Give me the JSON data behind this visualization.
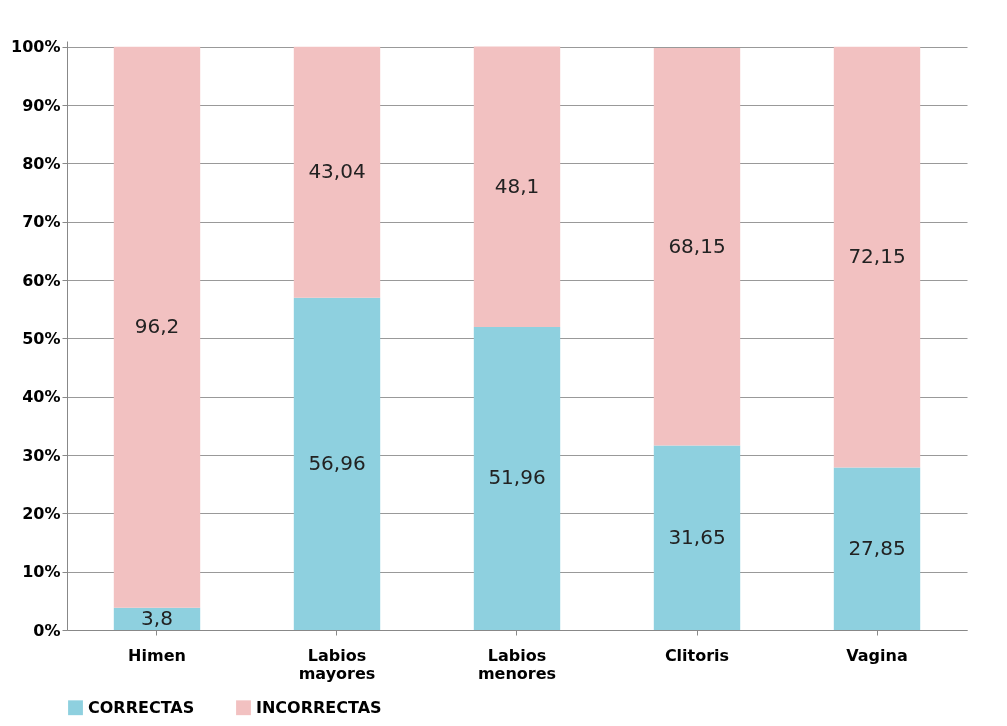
{
  "chart_data": {
    "type": "bar",
    "stacked": true,
    "categories": [
      "Himen",
      "Labios mayores",
      "Labios menores",
      "Clitoris",
      "Vagina"
    ],
    "series": [
      {
        "name": "CORRECTAS",
        "color": "#8ed0df",
        "values": [
          3.8,
          56.96,
          51.96,
          31.65,
          27.85
        ],
        "value_labels": [
          "3,8",
          "56,96",
          "51,96",
          "31,65",
          "27,85"
        ]
      },
      {
        "name": "INCORRECTAS",
        "color": "#f2c1c1",
        "values": [
          96.2,
          43.04,
          48.1,
          68.15,
          72.15
        ],
        "value_labels": [
          "96,2",
          "43,04",
          "48,1",
          "68,15",
          "72,15"
        ]
      }
    ],
    "ylim": [
      0,
      101
    ],
    "yticks": [
      {
        "value": 0,
        "label": "0%"
      },
      {
        "value": 10,
        "label": "10%"
      },
      {
        "value": 20,
        "label": "20%"
      },
      {
        "value": 30,
        "label": "30%"
      },
      {
        "value": 40,
        "label": "40%"
      },
      {
        "value": 50,
        "label": "50%"
      },
      {
        "value": 60,
        "label": "60%"
      },
      {
        "value": 70,
        "label": "70%"
      },
      {
        "value": 80,
        "label": "80%"
      },
      {
        "value": 90,
        "label": "90%"
      },
      {
        "value": 100,
        "label": "100%"
      }
    ],
    "grid": "y",
    "legend": "bottom"
  }
}
